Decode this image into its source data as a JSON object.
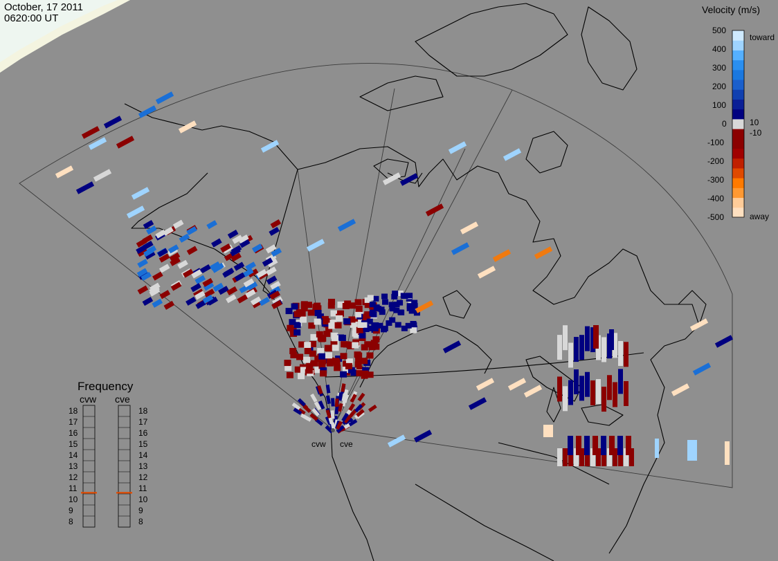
{
  "header": {
    "date": "October, 17 2011",
    "time": "0620:00 UT"
  },
  "legend": {
    "title": "Velocity (m/s)",
    "left_ticks": [
      "500",
      "400",
      "300",
      "200",
      "100",
      "0",
      "-100",
      "-200",
      "-300",
      "-400",
      "-500"
    ],
    "right_labels": [
      "toward",
      "10",
      "-10",
      "away"
    ],
    "colors": [
      "#ffe0c0",
      "#ffcc99",
      "#ff9933",
      "#ff7a00",
      "#e04a00",
      "#c02000",
      "#a00000",
      "#8b0000",
      "#8b0000",
      "#d8d8d8",
      "#000080",
      "#0a1f96",
      "#1040b0",
      "#1a5fcc",
      "#1a78e0",
      "#2a8ff0",
      "#55b0ff",
      "#9fd4ff",
      "#cfeaff"
    ]
  },
  "frequency": {
    "title": "Frequency",
    "stations": [
      "cvw",
      "cve"
    ],
    "levels": [
      "18",
      "17",
      "16",
      "15",
      "14",
      "13",
      "12",
      "11",
      "10",
      "9",
      "8"
    ],
    "cvw_mhz": 10.6,
    "cve_mhz": 10.6,
    "marker_color": "#e04a00"
  },
  "radars": {
    "site_labels": [
      "cvw",
      "cve"
    ]
  },
  "colors": {
    "background": "#8f8f8f",
    "coast": "#000000",
    "fov": "#3a3a3a",
    "dark_red": "#8b0000",
    "light_gray": "#d8d8d8",
    "navy": "#000080",
    "blue": "#1a6fd6",
    "light_blue": "#9fd4ff",
    "peach": "#ffe0c0",
    "orange": "#f07a10"
  }
}
